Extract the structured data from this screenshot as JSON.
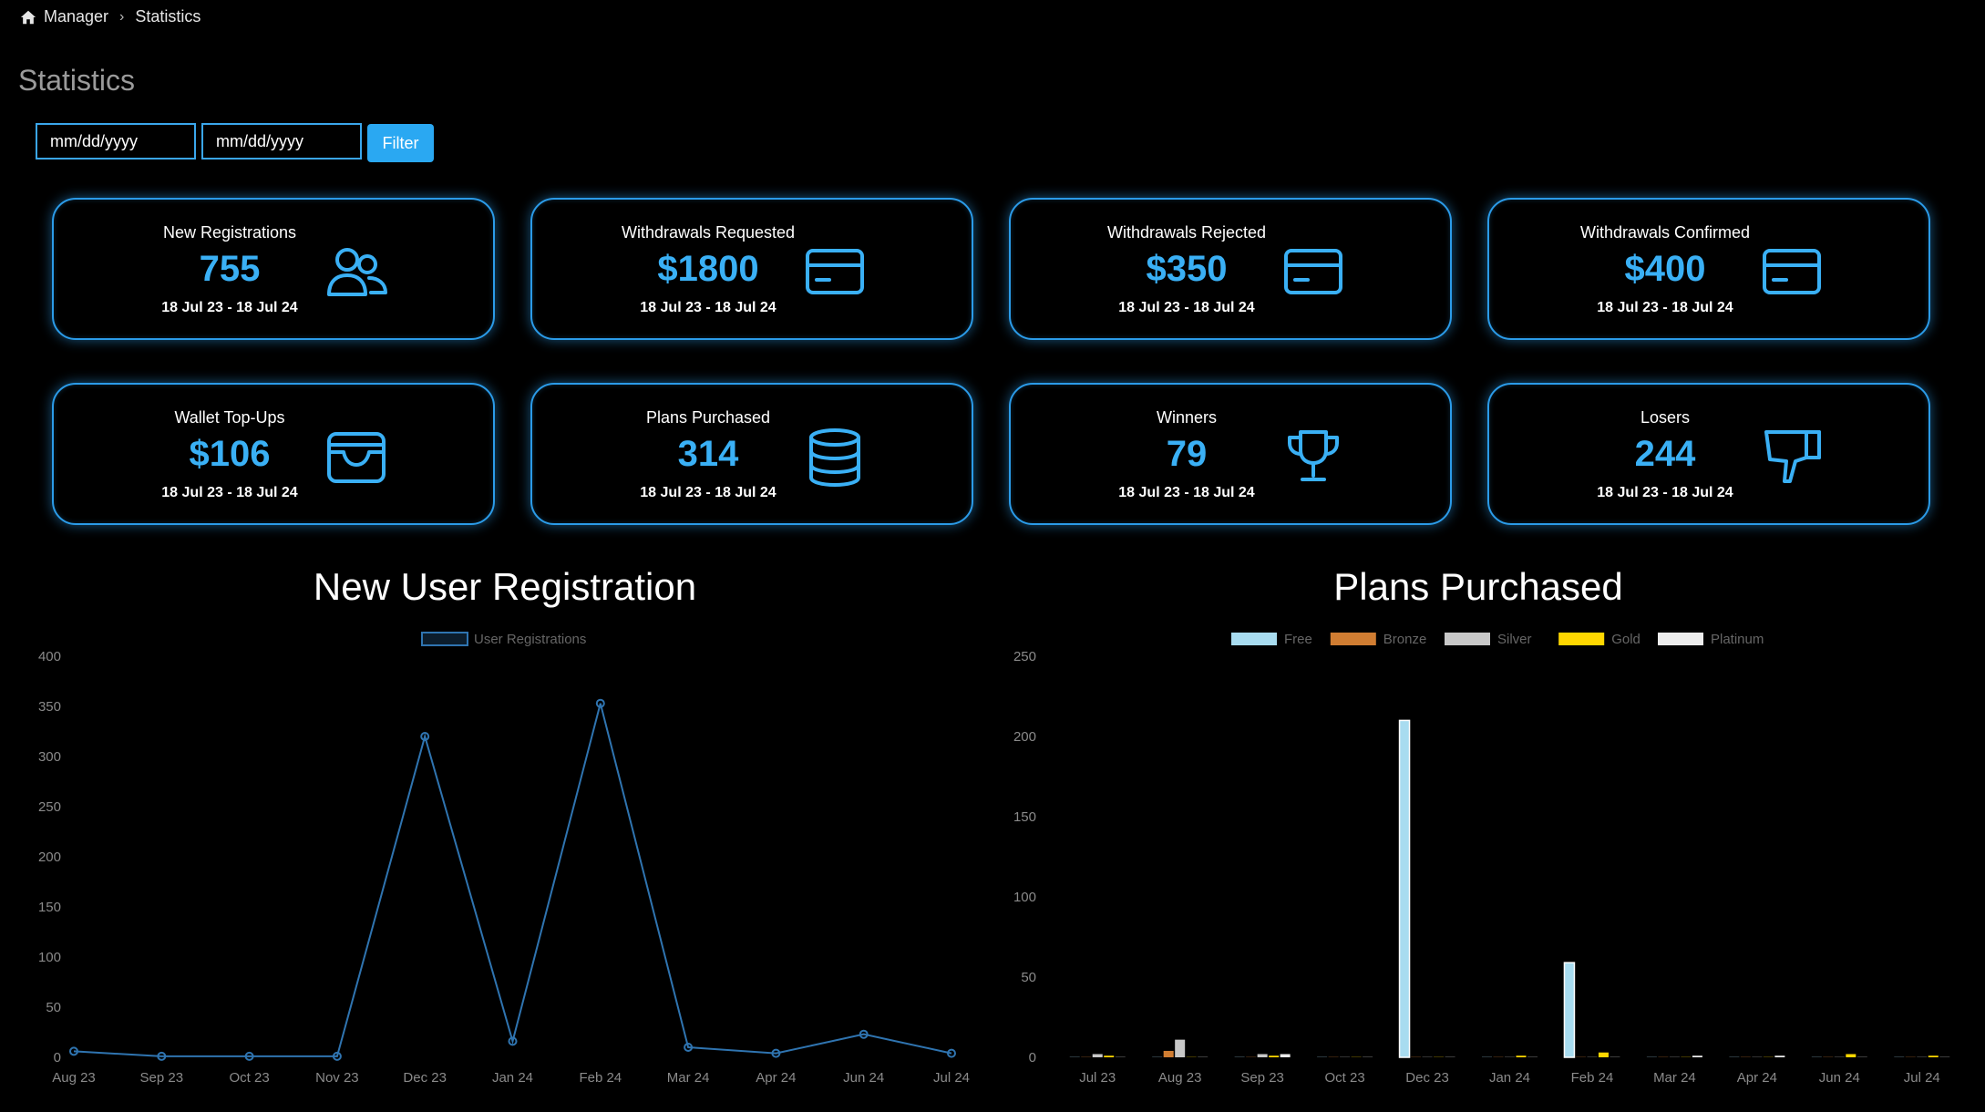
{
  "breadcrumb": {
    "home": "Manager",
    "current": "Statistics"
  },
  "page": {
    "title": "Statistics"
  },
  "filters": {
    "from_placeholder": "mm/dd/yyyy",
    "to_placeholder": "mm/dd/yyyy",
    "filter_label": "Filter"
  },
  "cards": [
    {
      "title": "New Registrations",
      "value": "755",
      "range": "18 Jul 23 - 18 Jul 24",
      "icon": "users-icon"
    },
    {
      "title": "Withdrawals Requested",
      "value": "$1800",
      "range": "18 Jul 23 - 18 Jul 24",
      "icon": "credit-card-icon"
    },
    {
      "title": "Withdrawals Rejected",
      "value": "$350",
      "range": "18 Jul 23 - 18 Jul 24",
      "icon": "credit-card-icon"
    },
    {
      "title": "Withdrawals Confirmed",
      "value": "$400",
      "range": "18 Jul 23 - 18 Jul 24",
      "icon": "credit-card-icon"
    },
    {
      "title": "Wallet Top-Ups",
      "value": "$106",
      "range": "18 Jul 23 - 18 Jul 24",
      "icon": "wallet-icon"
    },
    {
      "title": "Plans Purchased",
      "value": "314",
      "range": "18 Jul 23 - 18 Jul 24",
      "icon": "database-icon"
    },
    {
      "title": "Winners",
      "value": "79",
      "range": "18 Jul 23 - 18 Jul 24",
      "icon": "trophy-icon"
    },
    {
      "title": "Losers",
      "value": "244",
      "range": "18 Jul 23 - 18 Jul 24",
      "icon": "thumbs-down-icon"
    }
  ],
  "colors": {
    "accent": "#3ab0f5",
    "border": "#2b9be8",
    "line": "#2f74b0"
  },
  "chart_data": [
    {
      "type": "line",
      "title": "New User Registration",
      "categories": [
        "Aug 23",
        "Sep 23",
        "Oct 23",
        "Nov 23",
        "Dec 23",
        "Jan 24",
        "Feb 24",
        "Mar 24",
        "Apr 24",
        "Jun 24",
        "Jul 24"
      ],
      "series": [
        {
          "name": "User Registrations",
          "values": [
            6,
            1,
            1,
            1,
            320,
            16,
            353,
            10,
            4,
            23,
            4
          ]
        }
      ],
      "ylim": [
        0,
        400
      ],
      "yticks": [
        0,
        50,
        100,
        150,
        200,
        250,
        300,
        350,
        400
      ],
      "legend": "top",
      "grid": false
    },
    {
      "type": "bar",
      "title": "Plans Purchased",
      "categories": [
        "Jul 23",
        "Aug 23",
        "Sep 23",
        "Oct 23",
        "Dec 23",
        "Jan 24",
        "Feb 24",
        "Mar 24",
        "Apr 24",
        "Jun 24",
        "Jul 24"
      ],
      "series": [
        {
          "name": "Free",
          "color": "#a8dcf0",
          "values": [
            0,
            0,
            0,
            0,
            210,
            0,
            59,
            0,
            0,
            0,
            0
          ]
        },
        {
          "name": "Bronze",
          "color": "#d07d32",
          "values": [
            0,
            4,
            0,
            0,
            0,
            0,
            0,
            0,
            0,
            0,
            0
          ]
        },
        {
          "name": "Silver",
          "color": "#c8c8c8",
          "values": [
            2,
            11,
            2,
            0,
            0,
            0,
            0,
            0,
            0,
            0,
            0
          ]
        },
        {
          "name": "Gold",
          "color": "#ffd700",
          "values": [
            1,
            0,
            1,
            0,
            0,
            1,
            3,
            0,
            0,
            2,
            1
          ]
        },
        {
          "name": "Platinum",
          "color": "#ececec",
          "values": [
            0,
            0,
            2,
            0,
            0,
            0,
            0,
            1,
            1,
            0,
            0
          ]
        }
      ],
      "ylim": [
        0,
        250
      ],
      "yticks": [
        0,
        50,
        100,
        150,
        200,
        250
      ],
      "legend": "top",
      "grid": false
    }
  ]
}
